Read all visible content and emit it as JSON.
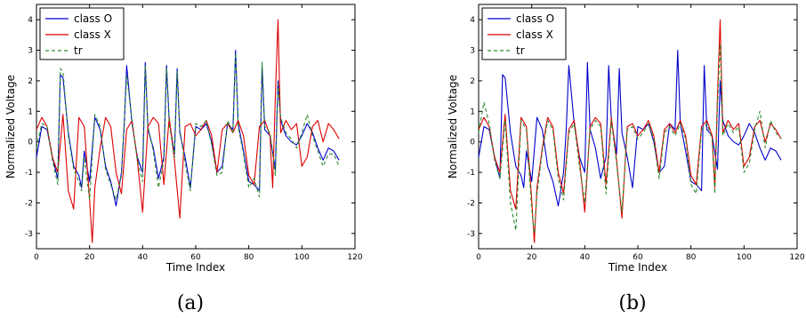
{
  "chart_data": [
    {
      "type": "line",
      "caption": "(a)",
      "xlabel": "Time Index",
      "ylabel": "Normalized Voltage",
      "xlim": [
        0,
        120
      ],
      "ylim": [
        -3.5,
        4.5
      ],
      "xticks": [
        "0",
        "20",
        "40",
        "60",
        "80",
        "100",
        "120"
      ],
      "yticks": [
        "-3",
        "-2",
        "-1",
        "0",
        "1",
        "2",
        "3",
        "4"
      ],
      "grid": false,
      "legend_position": "top-left",
      "series": [
        {
          "name": "class O",
          "color": "#0000cc",
          "style": "solid",
          "x": [
            0,
            2,
            4,
            6,
            8,
            9,
            10,
            12,
            14,
            16,
            17,
            18,
            20,
            22,
            24,
            26,
            28,
            30,
            32,
            33,
            34,
            36,
            38,
            40,
            41,
            42,
            44,
            46,
            48,
            49,
            50,
            52,
            53,
            54,
            56,
            58,
            60,
            62,
            64,
            66,
            68,
            70,
            72,
            74,
            75,
            76,
            78,
            80,
            82,
            84,
            85,
            86,
            88,
            90,
            91,
            92,
            94,
            96,
            98,
            100,
            102,
            104,
            106,
            108,
            110,
            112,
            114
          ],
          "y": [
            -0.5,
            0.5,
            0.4,
            -0.5,
            -1.2,
            2.2,
            2.1,
            0.3,
            -0.8,
            -1.1,
            -1.5,
            -0.3,
            -1.3,
            0.8,
            0.4,
            -0.8,
            -1.3,
            -2.1,
            -1.0,
            0.4,
            2.5,
            0.6,
            -0.5,
            -1.0,
            2.6,
            0.4,
            -0.2,
            -1.2,
            -0.5,
            2.5,
            0.7,
            -0.4,
            2.4,
            0.3,
            -0.5,
            -1.5,
            0.5,
            0.4,
            0.6,
            0.0,
            -1.0,
            -0.8,
            0.6,
            0.4,
            3.0,
            0.6,
            -0.3,
            -1.3,
            -1.4,
            -1.6,
            2.5,
            0.4,
            0.2,
            -0.9,
            2.0,
            0.7,
            0.2,
            0.0,
            -0.1,
            0.2,
            0.6,
            0.3,
            -0.2,
            -0.6,
            -0.2,
            -0.3,
            -0.6
          ]
        },
        {
          "name": "class X",
          "color": "#dd0000",
          "style": "solid",
          "x": [
            0,
            2,
            4,
            6,
            8,
            10,
            12,
            14,
            16,
            18,
            20,
            21,
            22,
            24,
            26,
            28,
            30,
            32,
            34,
            36,
            38,
            40,
            42,
            44,
            46,
            48,
            50,
            52,
            54,
            56,
            58,
            60,
            62,
            64,
            66,
            68,
            70,
            72,
            74,
            76,
            78,
            80,
            82,
            84,
            86,
            88,
            89,
            90,
            91,
            92,
            94,
            96,
            98,
            100,
            102,
            104,
            106,
            108,
            110,
            112,
            114
          ],
          "y": [
            0.4,
            0.8,
            0.5,
            -0.5,
            -1.0,
            0.9,
            -1.6,
            -2.2,
            0.8,
            0.5,
            -1.9,
            -3.3,
            -1.5,
            -0.2,
            0.8,
            0.5,
            -1.0,
            -1.7,
            0.4,
            0.7,
            -0.6,
            -2.3,
            0.5,
            0.8,
            0.6,
            -1.4,
            0.8,
            -0.6,
            -2.5,
            0.5,
            0.6,
            0.2,
            0.4,
            0.7,
            0.2,
            -1.0,
            0.4,
            0.6,
            0.3,
            0.7,
            0.2,
            -1.1,
            -1.4,
            0.5,
            0.7,
            0.2,
            -1.5,
            1.5,
            4.0,
            0.3,
            0.7,
            0.4,
            0.6,
            -0.8,
            -0.5,
            0.5,
            0.7,
            0.0,
            0.6,
            0.4,
            0.1
          ]
        },
        {
          "name": "tr",
          "color": "#2a8a2a",
          "style": "dashed",
          "x": [
            0,
            2,
            4,
            6,
            8,
            9,
            10,
            12,
            14,
            16,
            17,
            18,
            20,
            22,
            24,
            26,
            28,
            30,
            32,
            33,
            34,
            36,
            38,
            40,
            41,
            42,
            44,
            46,
            48,
            49,
            50,
            52,
            53,
            54,
            56,
            58,
            60,
            62,
            64,
            66,
            68,
            70,
            72,
            74,
            75,
            76,
            78,
            80,
            82,
            84,
            85,
            86,
            88,
            90,
            91,
            92,
            94,
            96,
            98,
            100,
            102,
            104,
            106,
            108,
            110,
            112,
            114
          ],
          "y": [
            -0.2,
            0.6,
            0.5,
            -0.6,
            -1.4,
            2.4,
            2.3,
            0.2,
            -0.9,
            -1.3,
            -1.6,
            -0.5,
            -1.9,
            0.9,
            0.5,
            -0.9,
            -1.4,
            -1.9,
            -1.1,
            0.5,
            2.2,
            0.7,
            -0.6,
            -1.3,
            2.5,
            0.5,
            -0.3,
            -1.5,
            -0.6,
            2.4,
            0.6,
            -0.5,
            2.3,
            0.4,
            -0.7,
            -1.6,
            0.6,
            0.5,
            0.7,
            -0.1,
            -1.1,
            -1.0,
            0.7,
            0.3,
            2.9,
            0.5,
            -0.4,
            -1.5,
            -1.2,
            -1.8,
            2.6,
            0.5,
            0.3,
            -1.1,
            1.9,
            0.8,
            0.3,
            0.1,
            -0.2,
            0.3,
            0.9,
            0.2,
            -0.3,
            -0.8,
            -0.4,
            -0.4,
            -0.8
          ]
        }
      ]
    },
    {
      "type": "line",
      "caption": "(b)",
      "xlabel": "Time Index",
      "ylabel": "Normalized Voltage",
      "xlim": [
        0,
        120
      ],
      "ylim": [
        -3.5,
        4.5
      ],
      "xticks": [
        "0",
        "20",
        "40",
        "60",
        "80",
        "100",
        "120"
      ],
      "yticks": [
        "-3",
        "-2",
        "-1",
        "0",
        "1",
        "2",
        "3",
        "4"
      ],
      "grid": false,
      "legend_position": "top-left",
      "series": [
        {
          "name": "class O",
          "color": "#0000cc",
          "style": "solid",
          "x": [
            0,
            2,
            4,
            6,
            8,
            9,
            10,
            12,
            14,
            16,
            17,
            18,
            20,
            22,
            24,
            26,
            28,
            30,
            32,
            33,
            34,
            36,
            38,
            40,
            41,
            42,
            44,
            46,
            48,
            49,
            50,
            52,
            53,
            54,
            56,
            58,
            60,
            62,
            64,
            66,
            68,
            70,
            72,
            74,
            75,
            76,
            78,
            80,
            82,
            84,
            85,
            86,
            88,
            90,
            91,
            92,
            94,
            96,
            98,
            100,
            102,
            104,
            106,
            108,
            110,
            112,
            114
          ],
          "y": [
            -0.5,
            0.5,
            0.4,
            -0.5,
            -1.2,
            2.2,
            2.1,
            0.3,
            -0.8,
            -1.1,
            -1.5,
            -0.3,
            -1.3,
            0.8,
            0.4,
            -0.8,
            -1.3,
            -2.1,
            -1.0,
            0.4,
            2.5,
            0.6,
            -0.5,
            -1.0,
            2.6,
            0.4,
            -0.2,
            -1.2,
            -0.5,
            2.5,
            0.7,
            -0.4,
            2.4,
            0.3,
            -0.5,
            -1.5,
            0.5,
            0.4,
            0.6,
            0.0,
            -1.0,
            -0.8,
            0.6,
            0.4,
            3.0,
            0.6,
            -0.3,
            -1.3,
            -1.4,
            -1.6,
            2.5,
            0.4,
            0.2,
            -0.9,
            2.0,
            0.7,
            0.2,
            0.0,
            -0.1,
            0.2,
            0.6,
            0.3,
            -0.2,
            -0.6,
            -0.2,
            -0.3,
            -0.6
          ]
        },
        {
          "name": "class X",
          "color": "#dd0000",
          "style": "solid",
          "x": [
            0,
            2,
            4,
            6,
            8,
            10,
            12,
            14,
            16,
            18,
            20,
            21,
            22,
            24,
            26,
            28,
            30,
            32,
            34,
            36,
            38,
            40,
            42,
            44,
            46,
            48,
            50,
            52,
            54,
            56,
            58,
            60,
            62,
            64,
            66,
            68,
            70,
            72,
            74,
            76,
            78,
            80,
            82,
            84,
            86,
            88,
            89,
            90,
            91,
            92,
            94,
            96,
            98,
            100,
            102,
            104,
            106,
            108,
            110,
            112,
            114
          ],
          "y": [
            0.4,
            0.8,
            0.5,
            -0.5,
            -1.0,
            0.9,
            -1.6,
            -2.2,
            0.8,
            0.5,
            -1.9,
            -3.3,
            -1.5,
            -0.2,
            0.8,
            0.5,
            -1.0,
            -1.7,
            0.4,
            0.7,
            -0.6,
            -2.3,
            0.5,
            0.8,
            0.6,
            -1.4,
            0.8,
            -0.6,
            -2.5,
            0.5,
            0.6,
            0.2,
            0.4,
            0.7,
            0.2,
            -1.0,
            0.4,
            0.6,
            0.3,
            0.7,
            0.2,
            -1.1,
            -1.4,
            0.5,
            0.7,
            0.2,
            -1.5,
            1.5,
            4.0,
            0.3,
            0.7,
            0.4,
            0.6,
            -0.8,
            -0.5,
            0.5,
            0.7,
            0.0,
            0.6,
            0.4,
            0.1
          ]
        },
        {
          "name": "tr",
          "color": "#2a8a2a",
          "style": "dashed",
          "x": [
            0,
            2,
            4,
            6,
            8,
            10,
            12,
            14,
            16,
            18,
            20,
            21,
            22,
            24,
            26,
            28,
            30,
            32,
            34,
            36,
            38,
            40,
            42,
            44,
            46,
            48,
            50,
            52,
            54,
            56,
            58,
            60,
            62,
            64,
            66,
            68,
            70,
            72,
            74,
            76,
            78,
            80,
            82,
            84,
            86,
            88,
            89,
            90,
            91,
            92,
            94,
            96,
            98,
            100,
            102,
            104,
            106,
            108,
            110,
            112,
            114
          ],
          "y": [
            0.3,
            1.3,
            0.6,
            -0.6,
            -1.2,
            0.7,
            -2.0,
            -2.9,
            0.7,
            0.4,
            -2.2,
            -3.0,
            -1.7,
            -0.3,
            0.7,
            0.4,
            -1.2,
            -1.9,
            0.3,
            0.6,
            -0.8,
            -2.0,
            0.4,
            0.7,
            0.5,
            -1.7,
            0.7,
            -0.7,
            -2.3,
            0.4,
            0.5,
            0.1,
            0.3,
            0.6,
            0.1,
            -1.2,
            0.3,
            0.5,
            0.2,
            0.6,
            0.1,
            -1.4,
            -1.7,
            0.4,
            0.6,
            0.1,
            -1.7,
            1.2,
            3.2,
            0.2,
            0.6,
            0.3,
            0.5,
            -1.0,
            -0.7,
            0.4,
            1.0,
            -0.2,
            0.7,
            0.3,
            0.1
          ]
        }
      ]
    }
  ]
}
